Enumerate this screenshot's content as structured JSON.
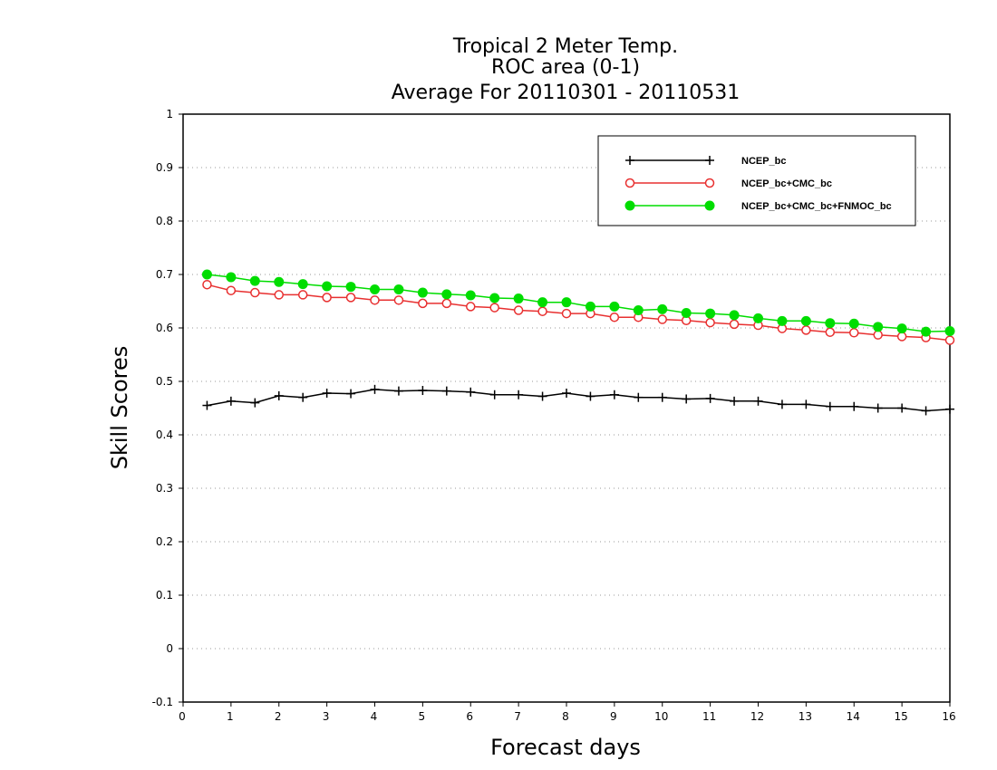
{
  "chart_data": {
    "type": "line",
    "title_lines": [
      "Tropical 2 Meter Temp.",
      "ROC area (0-1)",
      "Average For 20110301 - 20110531"
    ],
    "xlabel": "Forecast days",
    "ylabel": "Skill Scores",
    "xlim": [
      0,
      16
    ],
    "ylim": [
      -0.1,
      1
    ],
    "x_ticks": [
      0,
      1,
      2,
      3,
      4,
      5,
      6,
      7,
      8,
      9,
      10,
      11,
      12,
      13,
      14,
      15,
      16
    ],
    "y_ticks": [
      -0.1,
      0,
      0.1,
      0.2,
      0.3,
      0.4,
      0.5,
      0.6,
      0.7,
      0.8,
      0.9,
      1
    ],
    "y_tick_labels": [
      "-0.1",
      "0",
      "0.1",
      "0.2",
      "0.3",
      "0.4",
      "0.5",
      "0.6",
      "0.7",
      "0.8",
      "0.9",
      "1"
    ],
    "grid": "horizontal dotted",
    "legend_position": "top-right",
    "x": [
      0.5,
      1,
      1.5,
      2,
      2.5,
      3,
      3.5,
      4,
      4.5,
      5,
      5.5,
      6,
      6.5,
      7,
      7.5,
      8,
      8.5,
      9,
      9.5,
      10,
      10.5,
      11,
      11.5,
      12,
      12.5,
      13,
      13.5,
      14,
      14.5,
      15,
      15.5,
      16
    ],
    "series": [
      {
        "name": "NCEP_bc",
        "color": "#000000",
        "marker": "plus",
        "values": [
          0.455,
          0.463,
          0.46,
          0.473,
          0.47,
          0.478,
          0.477,
          0.485,
          0.482,
          0.483,
          0.482,
          0.48,
          0.475,
          0.475,
          0.472,
          0.478,
          0.472,
          0.475,
          0.47,
          0.47,
          0.467,
          0.468,
          0.463,
          0.463,
          0.457,
          0.457,
          0.453,
          0.453,
          0.45,
          0.45,
          0.445,
          0.448
        ]
      },
      {
        "name": "NCEP_bc+CMC_bc",
        "color": "#e83030",
        "marker": "open-circle",
        "values": [
          0.681,
          0.67,
          0.666,
          0.662,
          0.662,
          0.657,
          0.657,
          0.652,
          0.652,
          0.646,
          0.646,
          0.64,
          0.638,
          0.633,
          0.631,
          0.627,
          0.627,
          0.62,
          0.62,
          0.616,
          0.614,
          0.61,
          0.607,
          0.605,
          0.599,
          0.596,
          0.592,
          0.591,
          0.587,
          0.584,
          0.582,
          0.577
        ]
      },
      {
        "name": "NCEP_bc+CMC_bc+FNMOC_bc",
        "color": "#00dd00",
        "marker": "filled-circle",
        "values": [
          0.7,
          0.695,
          0.688,
          0.686,
          0.682,
          0.678,
          0.677,
          0.672,
          0.672,
          0.666,
          0.663,
          0.661,
          0.656,
          0.655,
          0.648,
          0.648,
          0.64,
          0.64,
          0.633,
          0.635,
          0.628,
          0.627,
          0.624,
          0.618,
          0.613,
          0.613,
          0.609,
          0.608,
          0.602,
          0.599,
          0.593,
          0.594
        ]
      }
    ]
  }
}
